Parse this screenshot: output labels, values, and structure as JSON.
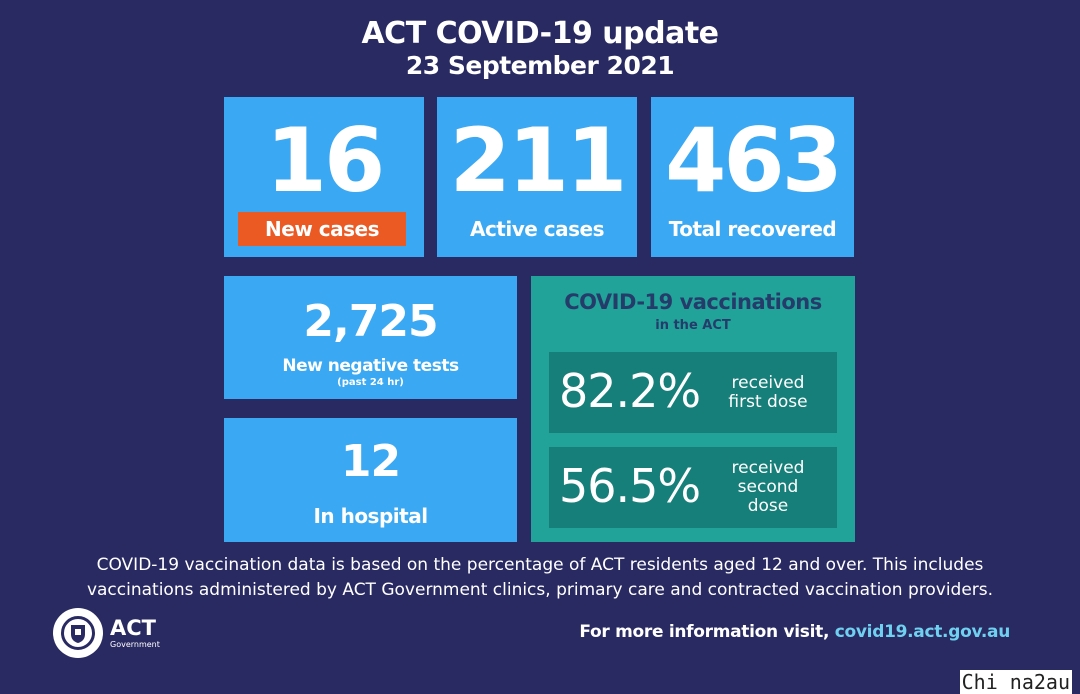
{
  "header": {
    "title": "ACT COVID-19 update",
    "date": "23 September 2021"
  },
  "stats": {
    "new_cases": {
      "value": "16",
      "label": "New cases"
    },
    "active_cases": {
      "value": "211",
      "label": "Active cases"
    },
    "total_recovered": {
      "value": "463",
      "label": "Total recovered"
    },
    "negative_tests": {
      "value": "2,725",
      "label": "New negative tests",
      "sub": "(past 24 hr)"
    },
    "hospital": {
      "value": "12",
      "label": "In hospital"
    }
  },
  "vaccinations": {
    "title": "COVID-19 vaccinations",
    "subtitle": "in the ACT",
    "first_dose": {
      "pct": "82.2%",
      "line1": "received",
      "line2": "first dose"
    },
    "second_dose": {
      "pct": "56.5%",
      "line1": "received",
      "line2": "second",
      "line3": "dose"
    }
  },
  "footnote": {
    "line1": "COVID-19 vaccination data is based on the percentage of ACT residents aged 12 and over. This includes",
    "line2": "vaccinations administered by ACT Government clinics, primary care and contracted vaccination providers."
  },
  "footer": {
    "logo_text": "ACT",
    "logo_sub": "Government",
    "info_prefix": "For more information visit, ",
    "info_link": "covid19.act.gov.au",
    "watermark": "Chi na2au"
  },
  "colors": {
    "background": "#2a2a63",
    "card_blue": "#3aa8f2",
    "badge_orange": "#ec5a24",
    "vacc_teal": "#21a39a",
    "vacc_dark_teal": "#177f7a"
  }
}
